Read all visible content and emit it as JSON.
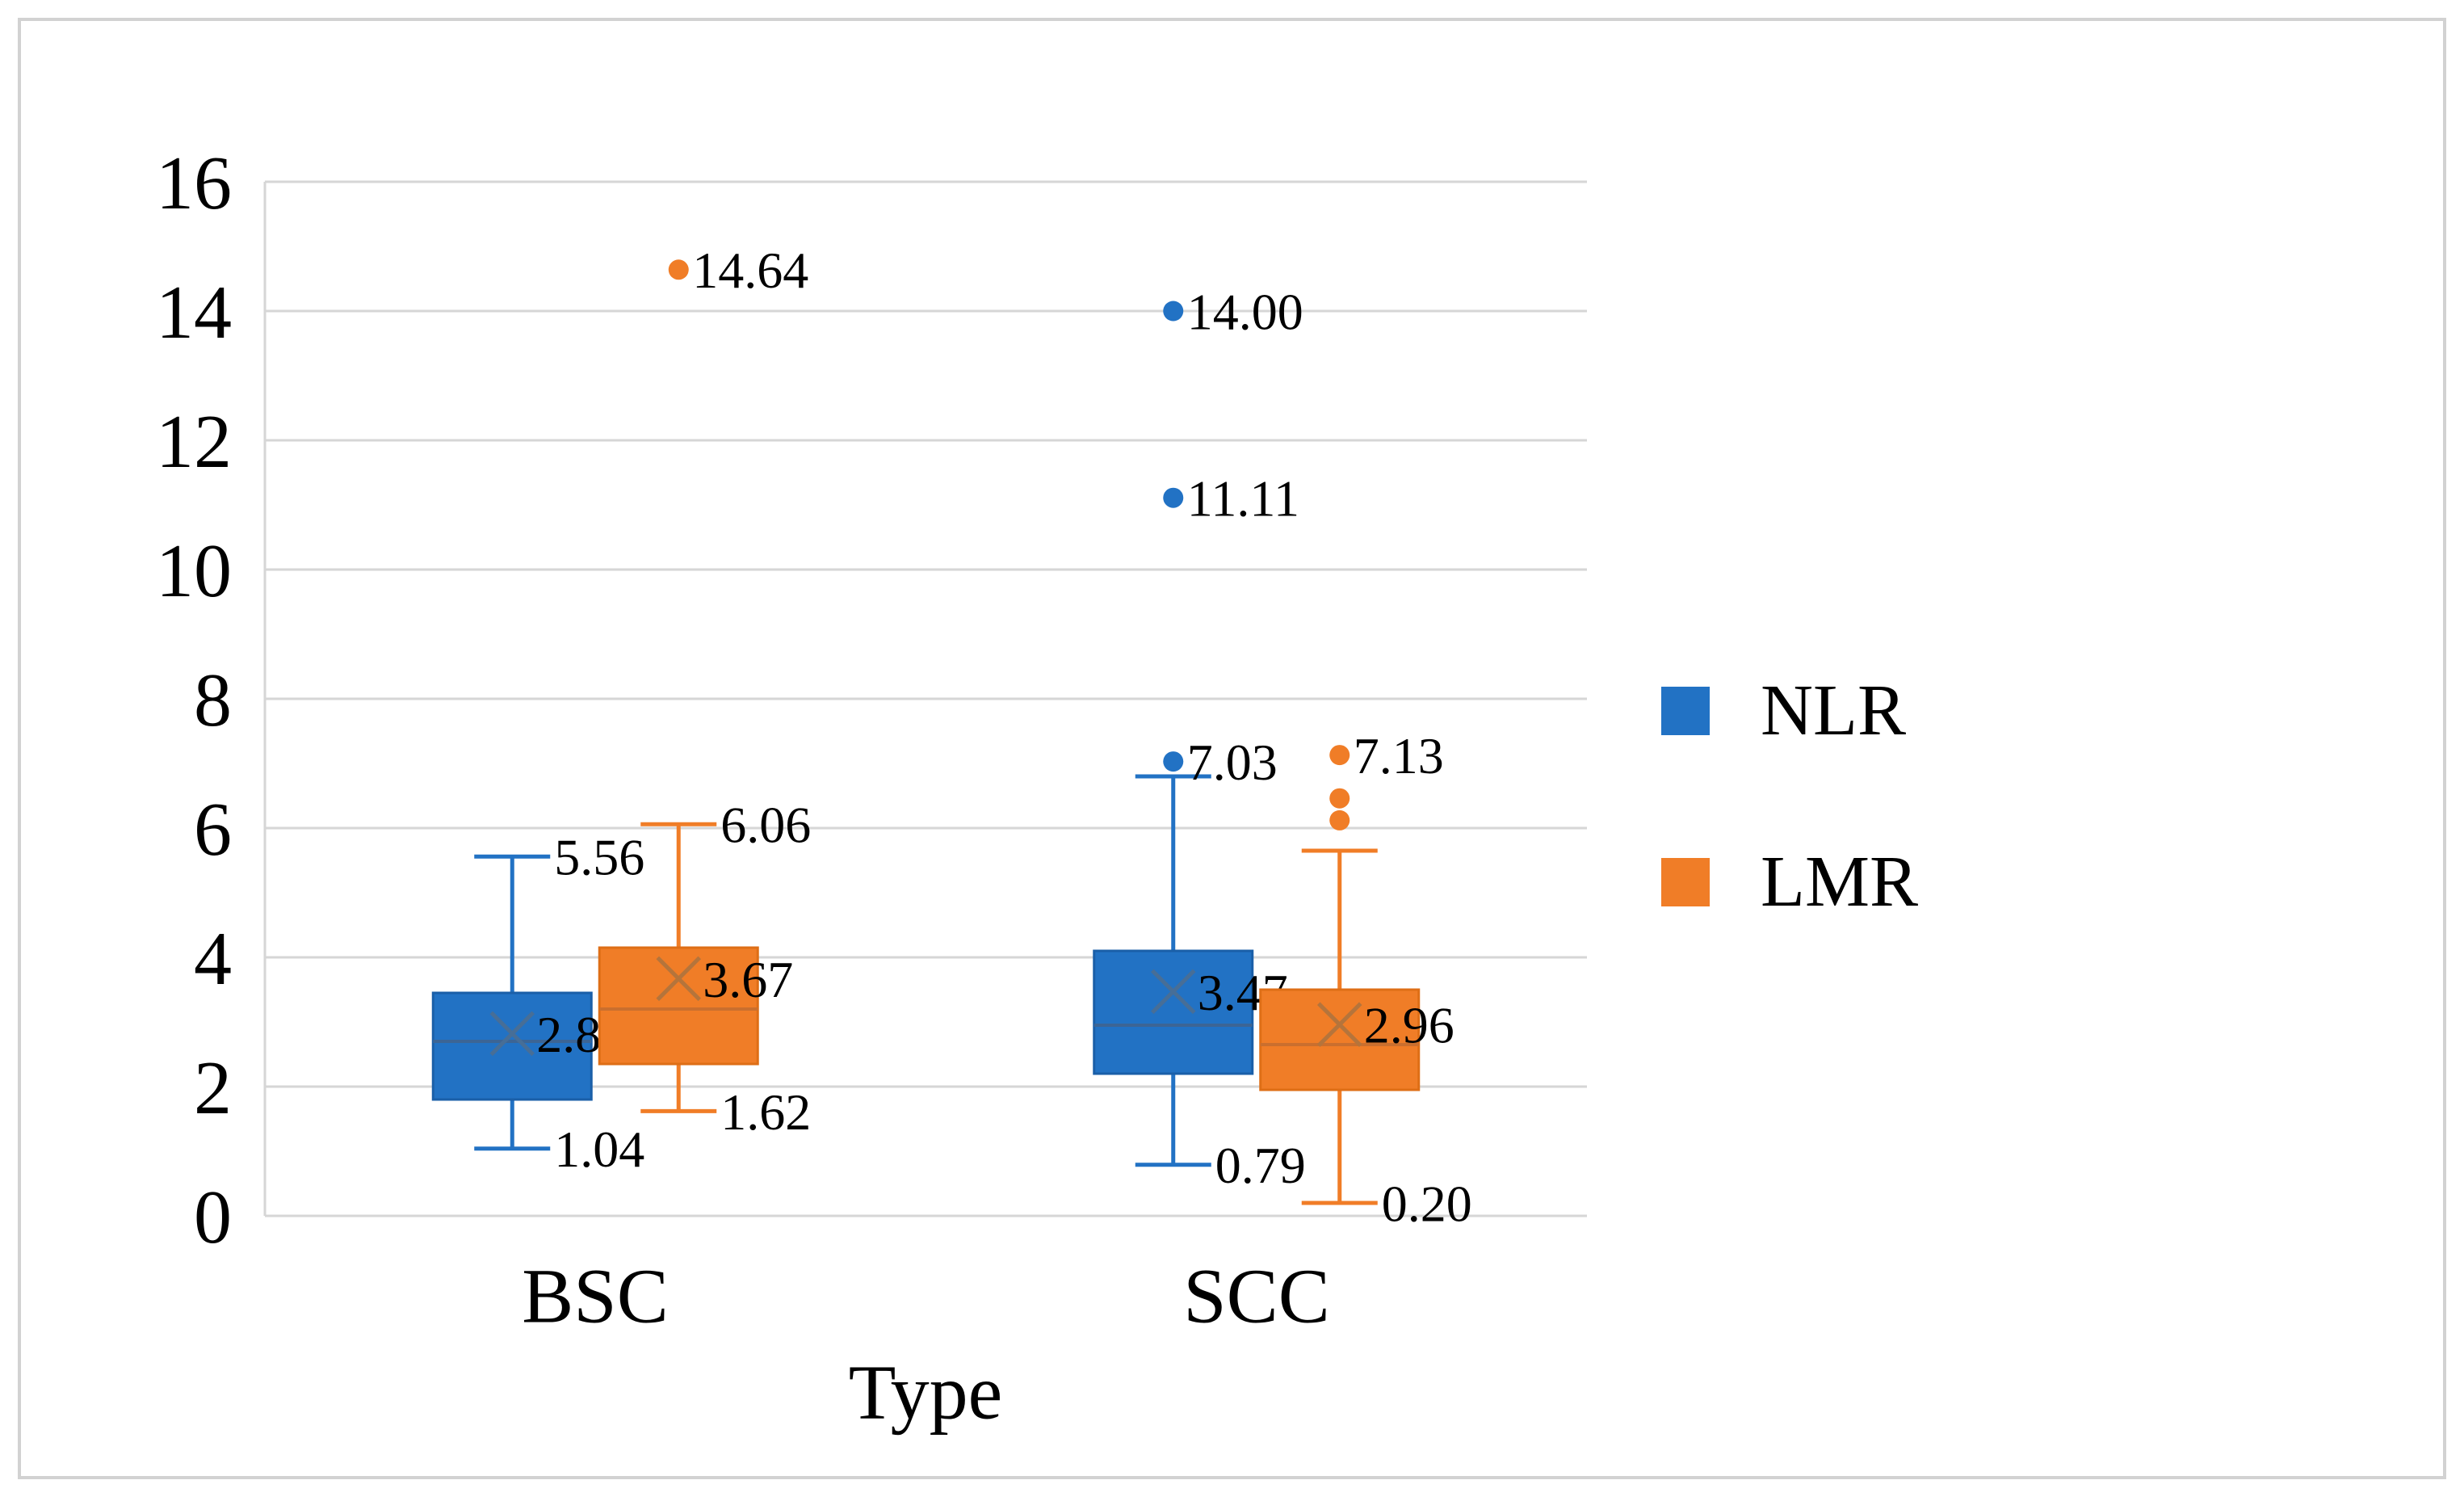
{
  "figure": {
    "background": "#FFFFFF",
    "border_color": "#D2D2D2"
  },
  "chart_data": {
    "type": "boxplot",
    "title": "",
    "xlabel": "Type",
    "ylabel": "",
    "categories": [
      "BSC",
      "SCC"
    ],
    "series": [
      "NLR",
      "LMR"
    ],
    "y_axis": {
      "min": 0,
      "max": 16,
      "tick_step": 2,
      "ticks": [
        0,
        2,
        4,
        6,
        8,
        10,
        12,
        14,
        16
      ]
    },
    "grid": true,
    "gridline_color": "#D6D6D6",
    "axis_text_color": "#000000",
    "legend": {
      "position": "right",
      "entries": [
        {
          "label": "NLR",
          "color": "#2272C4"
        },
        {
          "label": "LMR",
          "color": "#F07D27"
        }
      ]
    },
    "boxes": [
      {
        "category": "BSC",
        "series": "NLR",
        "color": "#2272C4",
        "border_color": "#1A5FA8",
        "median_color": "#3C6595",
        "mean_color": "#476E97",
        "stats": {
          "whisker_low": 1.04,
          "q1": 1.8,
          "median": 2.7,
          "q3": 3.45,
          "whisker_high": 5.56,
          "mean": 2.82
        },
        "value_labels": {
          "whisker_high": "5.56",
          "whisker_low": "1.04",
          "mean": "2.82"
        },
        "outliers": []
      },
      {
        "category": "BSC",
        "series": "LMR",
        "color": "#F07D27",
        "border_color": "#DE6E16",
        "median_color": "#CA6F2E",
        "mean_color": "#B5743B",
        "stats": {
          "whisker_low": 1.62,
          "q1": 2.35,
          "median": 3.2,
          "q3": 4.15,
          "whisker_high": 6.06,
          "mean": 3.67
        },
        "value_labels": {
          "whisker_high": "6.06",
          "whisker_low": "1.62",
          "mean": "3.67"
        },
        "outliers": [
          {
            "value": 14.64,
            "label": "14.64"
          }
        ]
      },
      {
        "category": "SCC",
        "series": "NLR",
        "color": "#2272C4",
        "border_color": "#1A5FA8",
        "median_color": "#3C6595",
        "mean_color": "#476E97",
        "stats": {
          "whisker_low": 0.79,
          "q1": 2.2,
          "median": 2.95,
          "q3": 4.1,
          "whisker_high": 6.8,
          "mean": 3.47
        },
        "value_labels": {
          "whisker_low": "0.79",
          "mean": "3.47"
        },
        "outliers": [
          {
            "value": 14.0,
            "label": "14.00"
          },
          {
            "value": 11.11,
            "label": "11.11"
          },
          {
            "value": 7.03,
            "label": "7.03"
          }
        ]
      },
      {
        "category": "SCC",
        "series": "LMR",
        "color": "#F07D27",
        "border_color": "#DE6E16",
        "median_color": "#CA6F2E",
        "mean_color": "#B5743B",
        "stats": {
          "whisker_low": 0.2,
          "q1": 1.95,
          "median": 2.65,
          "q3": 3.5,
          "whisker_high": 5.65,
          "mean": 2.96
        },
        "value_labels": {
          "whisker_low": "0.20",
          "mean": "2.96"
        },
        "outliers": [
          {
            "value": 7.13,
            "label": "7.13"
          },
          {
            "value": 6.46,
            "label": ""
          },
          {
            "value": 6.12,
            "label": ""
          }
        ]
      }
    ]
  }
}
